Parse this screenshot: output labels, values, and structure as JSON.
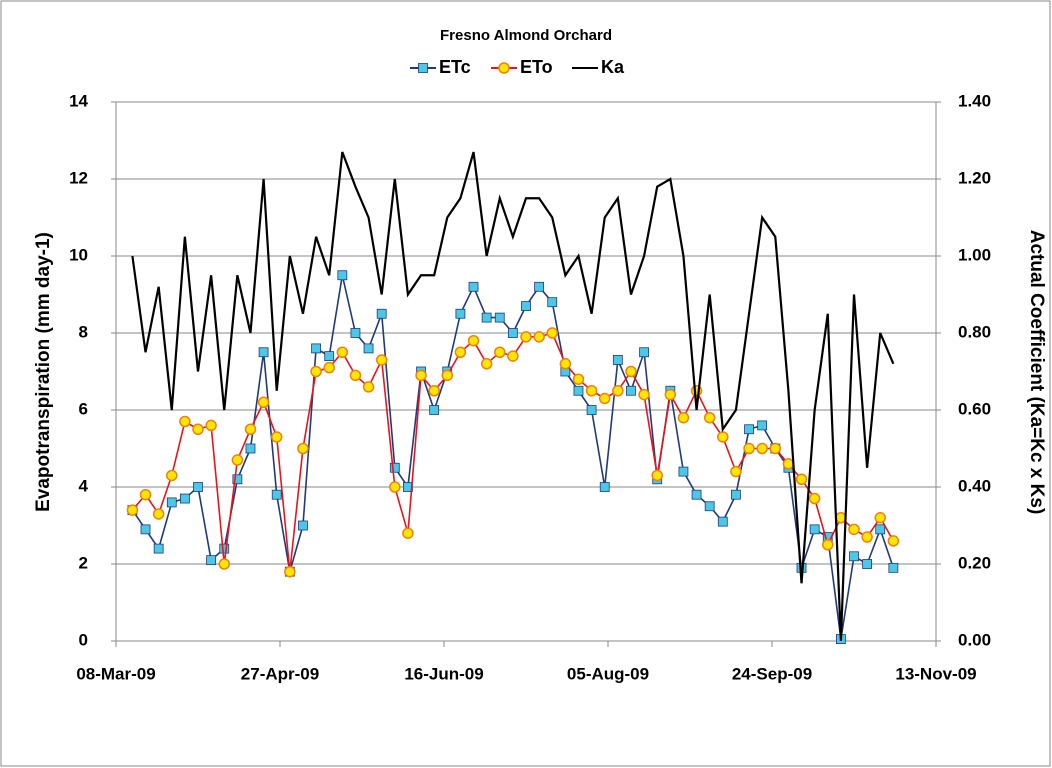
{
  "chart_data": {
    "type": "line",
    "title": "Fresno Almond Orchard",
    "ylabel": "Evapotranspiration (mm day-1)",
    "y2label": "Actual Coefficient  (Ka=Kc x Ks)",
    "x": [
      "2009-03-13",
      "2009-03-17",
      "2009-03-21",
      "2009-03-25",
      "2009-03-29",
      "2009-04-02",
      "2009-04-06",
      "2009-04-10",
      "2009-04-14",
      "2009-04-18",
      "2009-04-22",
      "2009-04-26",
      "2009-04-30",
      "2009-05-04",
      "2009-05-08",
      "2009-05-12",
      "2009-05-16",
      "2009-05-20",
      "2009-05-24",
      "2009-05-28",
      "2009-06-01",
      "2009-06-05",
      "2009-06-09",
      "2009-06-13",
      "2009-06-17",
      "2009-06-21",
      "2009-06-25",
      "2009-06-29",
      "2009-07-03",
      "2009-07-07",
      "2009-07-11",
      "2009-07-15",
      "2009-07-19",
      "2009-07-23",
      "2009-07-27",
      "2009-07-31",
      "2009-08-04",
      "2009-08-08",
      "2009-08-12",
      "2009-08-16",
      "2009-08-20",
      "2009-08-24",
      "2009-08-28",
      "2009-09-01",
      "2009-09-05",
      "2009-09-09",
      "2009-09-13",
      "2009-09-17",
      "2009-09-21",
      "2009-09-25",
      "2009-09-29",
      "2009-10-03",
      "2009-10-07",
      "2009-10-11",
      "2009-10-15",
      "2009-10-19",
      "2009-10-23",
      "2009-10-27",
      "2009-10-31"
    ],
    "series": [
      {
        "name": "ETc",
        "color": "#1f3a7a",
        "marker": "square",
        "marker_color": "#4bc8e8",
        "values": [
          3.4,
          2.9,
          2.4,
          3.6,
          3.7,
          4.0,
          2.1,
          2.4,
          4.2,
          5.0,
          7.5,
          3.8,
          1.8,
          3.0,
          7.6,
          7.4,
          9.5,
          8.0,
          7.6,
          8.5,
          4.5,
          4.0,
          7.0,
          6.0,
          7.0,
          8.5,
          9.2,
          8.4,
          8.4,
          8.0,
          8.7,
          9.2,
          8.8,
          7.0,
          6.5,
          6.0,
          4.0,
          7.3,
          6.5,
          7.5,
          4.2,
          6.5,
          4.4,
          3.8,
          3.5,
          3.1,
          3.8,
          5.5,
          5.6,
          5.0,
          4.5,
          1.9,
          2.9,
          2.7,
          0.05,
          2.2,
          2.0,
          2.9,
          1.9
        ]
      },
      {
        "name": "ETo",
        "color": "#e8141c",
        "marker": "circle",
        "marker_color": "#ffe600",
        "values": [
          3.4,
          3.8,
          3.3,
          4.3,
          5.7,
          5.5,
          5.6,
          2.0,
          4.7,
          5.5,
          6.2,
          5.3,
          1.8,
          5.0,
          7.0,
          7.1,
          7.5,
          6.9,
          6.6,
          7.3,
          4.0,
          2.8,
          6.9,
          6.5,
          6.9,
          7.5,
          7.8,
          7.2,
          7.5,
          7.4,
          7.9,
          7.9,
          8.0,
          7.2,
          6.8,
          6.5,
          6.3,
          6.5,
          7.0,
          6.4,
          4.3,
          6.4,
          5.8,
          6.5,
          5.8,
          5.3,
          4.4,
          5.0,
          5.0,
          5.0,
          4.6,
          4.2,
          3.7,
          2.5,
          3.2,
          2.9,
          2.7,
          3.2,
          2.6
        ]
      },
      {
        "name": "Ka",
        "color": "#000000",
        "axis": "y2",
        "values": [
          1.0,
          0.75,
          0.92,
          0.6,
          1.05,
          0.7,
          0.95,
          0.6,
          0.95,
          0.8,
          1.2,
          0.65,
          1.0,
          0.85,
          1.05,
          0.95,
          1.27,
          1.18,
          1.1,
          0.9,
          1.2,
          0.9,
          0.95,
          0.95,
          1.1,
          1.15,
          1.27,
          1.0,
          1.15,
          1.05,
          1.15,
          1.15,
          1.1,
          0.95,
          1.0,
          0.85,
          1.1,
          1.15,
          0.9,
          1.0,
          1.18,
          1.2,
          1.0,
          0.6,
          0.9,
          0.55,
          0.6,
          0.85,
          1.1,
          1.05,
          0.65,
          0.15,
          0.6,
          0.85,
          0.0,
          0.9,
          0.45,
          0.8,
          0.72
        ]
      }
    ],
    "xlim": [
      "2009-03-08",
      "2009-11-13"
    ],
    "xticks": [
      {
        "value": "2009-03-08",
        "label": "08-Mar-09"
      },
      {
        "value": "2009-04-27",
        "label": "27-Apr-09"
      },
      {
        "value": "2009-06-16",
        "label": "16-Jun-09"
      },
      {
        "value": "2009-08-05",
        "label": "05-Aug-09"
      },
      {
        "value": "2009-09-24",
        "label": "24-Sep-09"
      },
      {
        "value": "2009-11-13",
        "label": "13-Nov-09"
      }
    ],
    "ylim": [
      0,
      14
    ],
    "yticks": [
      0,
      2,
      4,
      6,
      8,
      10,
      12,
      14
    ],
    "y2lim": [
      0,
      1.4
    ],
    "y2ticks": [
      {
        "value": 0,
        "label": "0.00"
      },
      {
        "value": 0.2,
        "label": "0.20"
      },
      {
        "value": 0.4,
        "label": "0.40"
      },
      {
        "value": 0.6,
        "label": "0.60"
      },
      {
        "value": 0.8,
        "label": "0.80"
      },
      {
        "value": 1.0,
        "label": "1.00"
      },
      {
        "value": 1.2,
        "label": "1.20"
      },
      {
        "value": 1.4,
        "label": "1.40"
      }
    ],
    "grid": true,
    "legend": "top"
  }
}
